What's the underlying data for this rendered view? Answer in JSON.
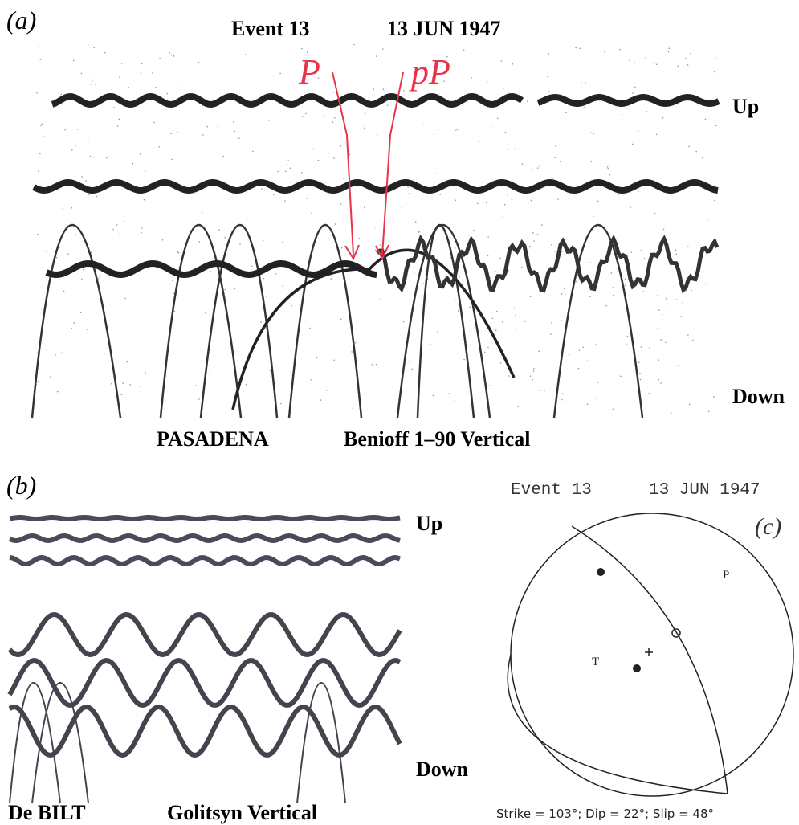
{
  "panel_a": {
    "label": "(a)",
    "event": "Event 13",
    "date": "13 JUN 1947",
    "phase_p": "P",
    "phase_pp": "pP",
    "up": "Up",
    "down": "Down",
    "station": "PASADENA",
    "instrument": "Benioff 1–90 Vertical"
  },
  "panel_b": {
    "label": "(b)",
    "up": "Up",
    "down": "Down",
    "station": "De BILT",
    "instrument": "Golitsyn Vertical"
  },
  "panel_c": {
    "event": "Event 13",
    "date": "13 JUN 1947",
    "label": "(c)",
    "p_axis": "P",
    "t_axis": "T",
    "caption": "Strike = 103°; Dip = 22°; Slip = 48°"
  }
}
